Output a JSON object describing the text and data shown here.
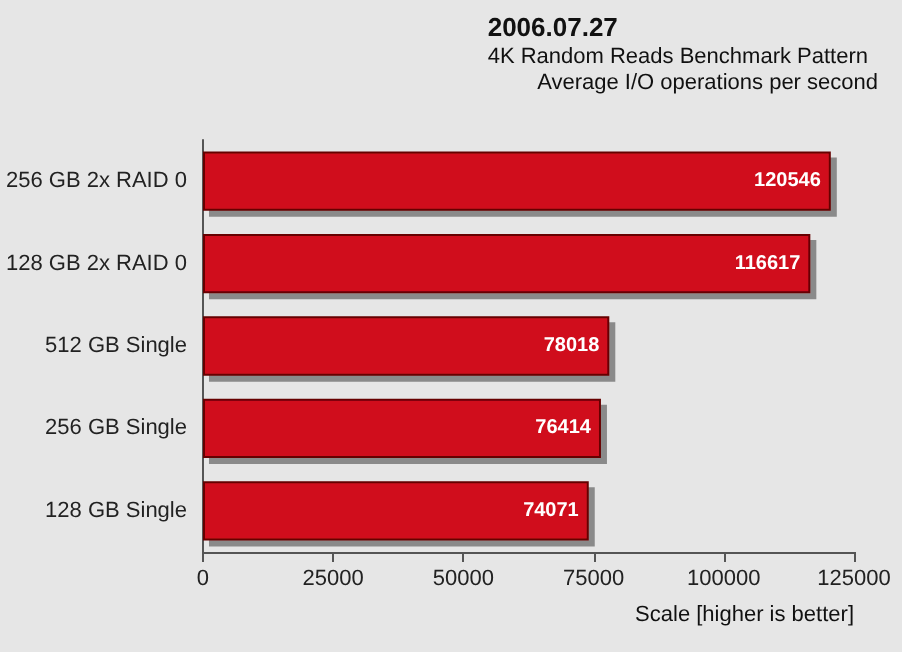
{
  "chart_data": {
    "type": "bar",
    "orientation": "horizontal",
    "title": "2006.07.27",
    "subtitle": "4K Random Reads Benchmark Pattern",
    "annotations": [
      "Average I/O operations per second"
    ],
    "xlabel": "Scale [higher is better]",
    "categories": [
      "256 GB 2x RAID 0",
      "128 GB 2x RAID 0",
      "512 GB Single",
      "256 GB Single",
      "128 GB Single"
    ],
    "values": [
      120546,
      116617,
      78018,
      76414,
      74071
    ],
    "color": "#d0101c",
    "data_labels": true,
    "xlim": [
      0,
      125000
    ],
    "xticks": [
      0,
      25000,
      50000,
      75000,
      100000,
      125000
    ],
    "grid": false
  }
}
